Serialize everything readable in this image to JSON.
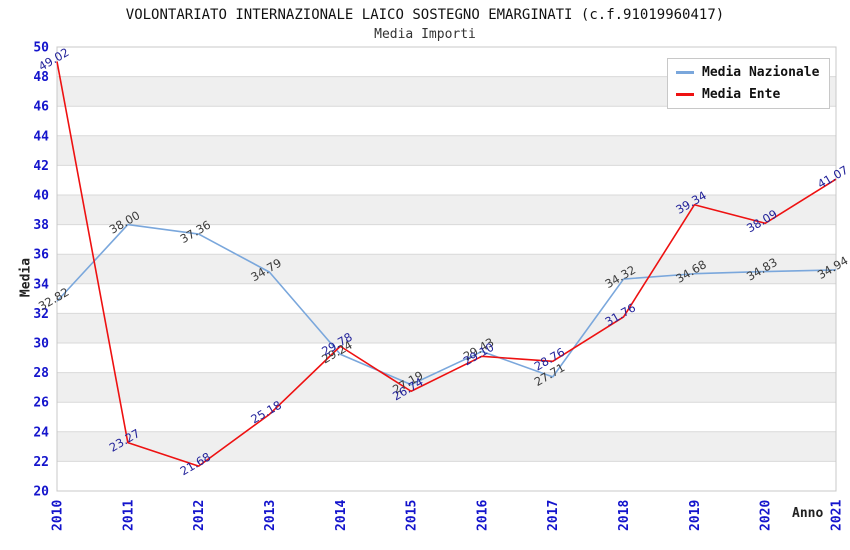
{
  "header": {
    "title": "VOLONTARIATO INTERNAZIONALE LAICO SOSTEGNO EMARGINATI (c.f.91019960417)",
    "subtitle": "Media Importi"
  },
  "axes": {
    "y_label": "Media",
    "x_label": "Anno"
  },
  "legend": {
    "position": "top-right",
    "items": [
      {
        "label": "Media Nazionale",
        "color": "#7AA7DC"
      },
      {
        "label": "Media Ente",
        "color": "#EE1111"
      }
    ]
  },
  "chart_data": {
    "type": "line",
    "title": "VOLONTARIATO INTERNAZIONALE LAICO SOSTEGNO EMARGINATI (c.f.91019960417)",
    "subtitle": "Media Importi",
    "xlabel": "Anno",
    "ylabel": "Media",
    "x": [
      "2010",
      "2011",
      "2012",
      "2013",
      "2014",
      "2015",
      "2016",
      "2017",
      "2018",
      "2019",
      "2020",
      "2021"
    ],
    "series": [
      {
        "name": "Media Nazionale",
        "color": "#7AA7DC",
        "label_color": "#3A3A3A",
        "values": [
          32.82,
          38.0,
          37.36,
          34.79,
          29.24,
          27.19,
          29.43,
          27.71,
          34.32,
          34.68,
          34.83,
          34.94
        ]
      },
      {
        "name": "Media Ente",
        "color": "#EE1111",
        "label_color": "#22229A",
        "values": [
          49.02,
          23.27,
          21.68,
          25.18,
          29.78,
          26.74,
          29.1,
          28.76,
          31.76,
          39.34,
          38.09,
          41.07
        ]
      }
    ],
    "ylim": [
      20,
      50
    ],
    "ytick_step": 2,
    "grid": true,
    "legend_position": "top-right",
    "band_colors": [
      "#ffffff",
      "#efefef"
    ],
    "gridline_color": "#d9d9d9",
    "border_color": "#c8c8c8",
    "tick_color": "#1414CC"
  }
}
